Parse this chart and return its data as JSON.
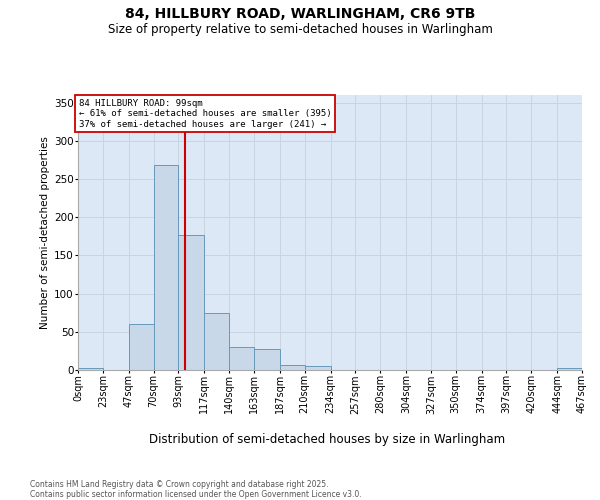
{
  "title1": "84, HILLBURY ROAD, WARLINGHAM, CR6 9TB",
  "title2": "Size of property relative to semi-detached houses in Warlingham",
  "xlabel": "Distribution of semi-detached houses by size in Warlingham",
  "ylabel": "Number of semi-detached properties",
  "footnote1": "Contains HM Land Registry data © Crown copyright and database right 2025.",
  "footnote2": "Contains public sector information licensed under the Open Government Licence v3.0.",
  "bin_edges": [
    0,
    23,
    47,
    70,
    93,
    117,
    140,
    163,
    187,
    210,
    234,
    257,
    280,
    304,
    327,
    350,
    374,
    397,
    420,
    444,
    467
  ],
  "bin_labels": [
    "0sqm",
    "23sqm",
    "47sqm",
    "70sqm",
    "93sqm",
    "117sqm",
    "140sqm",
    "163sqm",
    "187sqm",
    "210sqm",
    "234sqm",
    "257sqm",
    "280sqm",
    "304sqm",
    "327sqm",
    "350sqm",
    "374sqm",
    "397sqm",
    "420sqm",
    "444sqm",
    "467sqm"
  ],
  "counts": [
    3,
    0,
    60,
    268,
    177,
    75,
    30,
    28,
    6,
    5,
    0,
    0,
    0,
    0,
    0,
    0,
    0,
    0,
    0,
    2
  ],
  "property_size": 99,
  "property_label": "84 HILLBURY ROAD: 99sqm",
  "pct_smaller": 61,
  "count_smaller": 395,
  "pct_larger": 37,
  "count_larger": 241,
  "bar_color": "#c8d8e8",
  "bar_edge_color": "#6699bb",
  "redline_color": "#cc0000",
  "annotation_box_color": "#cc0000",
  "background_color": "#ffffff",
  "plot_bg_color": "#dce8f5",
  "grid_color": "#c8d4e0",
  "ylim": [
    0,
    360
  ],
  "yticks": [
    0,
    50,
    100,
    150,
    200,
    250,
    300,
    350
  ],
  "title1_fontsize": 10,
  "title2_fontsize": 8.5,
  "ylabel_fontsize": 7.5,
  "xlabel_fontsize": 8.5,
  "tick_fontsize": 7,
  "footnote_fontsize": 5.5
}
